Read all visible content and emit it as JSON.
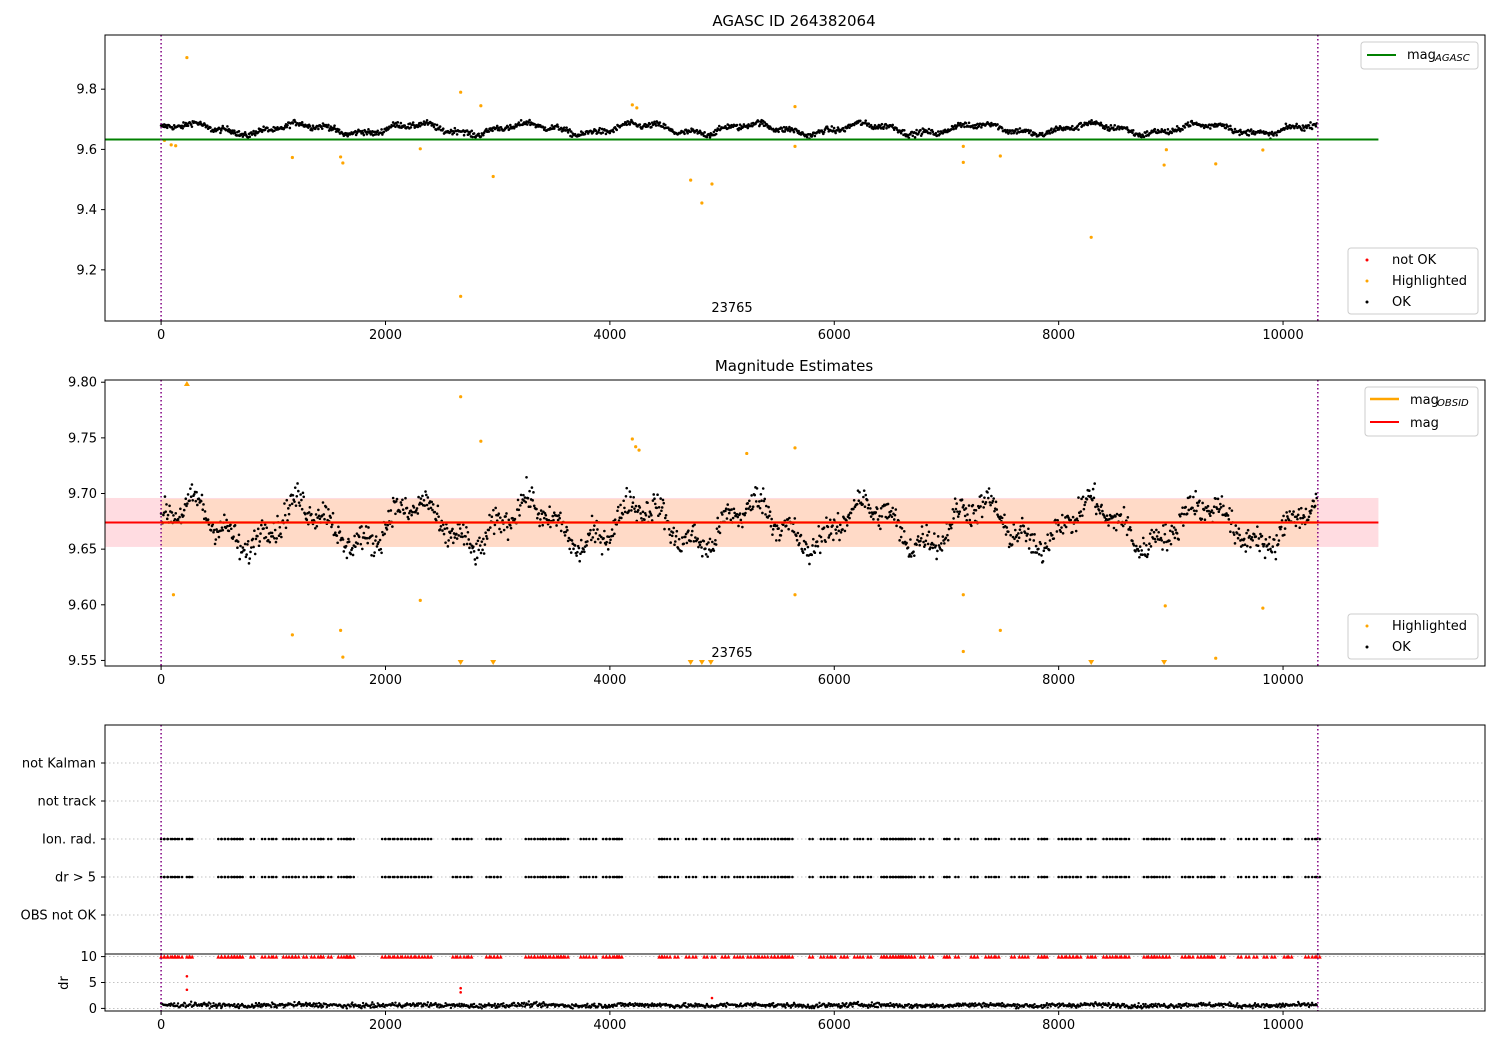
{
  "colors": {
    "ok": "#000000",
    "highlighted": "#ffa500",
    "not_ok": "#ff0000",
    "agasc_line": "#008000",
    "obsid_line": "#ffa500",
    "mag_line": "#ff0000",
    "obs_boundary": "#800080",
    "band_red": "#ffc0c8",
    "band_orange": "#ffd8bc"
  },
  "chart_data": [
    {
      "type": "scatter",
      "title": "AGASC ID 264382064",
      "xlim": [
        -500,
        11800
      ],
      "ylim": [
        9.03,
        9.98
      ],
      "x_ticks": [
        "0",
        "2000",
        "4000",
        "6000",
        "8000",
        "10000"
      ],
      "y_ticks": [
        "9.2",
        "9.4",
        "9.6",
        "9.8"
      ],
      "obsid_label": "23765",
      "obs_boundaries": [
        0,
        10310
      ],
      "reference_lines": [
        {
          "name": "mag",
          "subscript": "AGASC",
          "value": 9.633,
          "x_range": [
            -500,
            10850
          ]
        }
      ],
      "legend_lines": [
        {
          "name": "mag",
          "subscript": "AGASC",
          "color": "#008000"
        }
      ],
      "legend_points": [
        {
          "name": "not OK",
          "color": "#ff0000"
        },
        {
          "name": "Highlighted",
          "color": "#ffa500"
        },
        {
          "name": "OK",
          "color": "#000000"
        }
      ],
      "ok_series": {
        "x_range": [
          0,
          10300
        ],
        "center": 9.668,
        "amplitude": 0.022,
        "noise": 0.01
      },
      "highlighted_points": [
        [
          30,
          9.63
        ],
        [
          90,
          9.615
        ],
        [
          130,
          9.612
        ],
        [
          230,
          9.905
        ],
        [
          1170,
          9.573
        ],
        [
          1600,
          9.575
        ],
        [
          1620,
          9.555
        ],
        [
          2310,
          9.602
        ],
        [
          2670,
          9.79
        ],
        [
          2670,
          9.112
        ],
        [
          2850,
          9.745
        ],
        [
          2960,
          9.51
        ],
        [
          4200,
          9.748
        ],
        [
          4240,
          9.738
        ],
        [
          4720,
          9.498
        ],
        [
          4820,
          9.422
        ],
        [
          4910,
          9.485
        ],
        [
          5650,
          9.742
        ],
        [
          5650,
          9.61
        ],
        [
          7150,
          9.61
        ],
        [
          7150,
          9.557
        ],
        [
          7480,
          9.578
        ],
        [
          8290,
          9.308
        ],
        [
          8940,
          9.548
        ],
        [
          8960,
          9.599
        ],
        [
          9400,
          9.552
        ],
        [
          9820,
          9.598
        ]
      ]
    },
    {
      "type": "scatter",
      "title": "Magnitude Estimates",
      "xlim": [
        -500,
        11800
      ],
      "ylim": [
        9.545,
        9.802
      ],
      "x_ticks": [
        "0",
        "2000",
        "4000",
        "6000",
        "8000",
        "10000"
      ],
      "y_ticks": [
        "9.55",
        "9.60",
        "9.65",
        "9.70",
        "9.75",
        "9.80"
      ],
      "obsid_label": "23765",
      "obs_boundaries": [
        0,
        10310
      ],
      "mag_mean": 9.674,
      "mag_band": [
        9.652,
        9.696
      ],
      "obsid_band": [
        9.652,
        9.695
      ],
      "reference_lines": [
        {
          "name": "mag",
          "subscript": "OBSID",
          "value": 9.674,
          "x_range": [
            0,
            10310
          ]
        },
        {
          "name": "mag",
          "subscript": "",
          "value": 9.674,
          "x_range": [
            -500,
            10850
          ]
        }
      ],
      "legend_lines": [
        {
          "name": "mag",
          "subscript": "OBSID",
          "color": "#ffa500"
        },
        {
          "name": "mag",
          "subscript": "",
          "color": "#ff0000"
        }
      ],
      "legend_points": [
        {
          "name": "Highlighted",
          "color": "#ffa500"
        },
        {
          "name": "OK",
          "color": "#000000"
        }
      ],
      "ok_series": {
        "x_range": [
          0,
          10300
        ],
        "center": 9.672,
        "amplitude": 0.026,
        "noise": 0.012
      },
      "highlighted_points": [
        [
          110,
          9.609
        ],
        [
          1170,
          9.573
        ],
        [
          1600,
          9.577
        ],
        [
          1620,
          9.553
        ],
        [
          2310,
          9.604
        ],
        [
          2670,
          9.787
        ],
        [
          2850,
          9.747
        ],
        [
          4200,
          9.749
        ],
        [
          4230,
          9.742
        ],
        [
          4260,
          9.739
        ],
        [
          5220,
          9.736
        ],
        [
          5650,
          9.741
        ],
        [
          5650,
          9.609
        ],
        [
          7150,
          9.609
        ],
        [
          7150,
          9.558
        ],
        [
          7480,
          9.577
        ],
        [
          8950,
          9.599
        ],
        [
          9400,
          9.552
        ],
        [
          9820,
          9.597
        ]
      ],
      "clipped_high": [
        230
      ],
      "clipped_low": [
        2670,
        2960,
        4720,
        4820,
        4900,
        8290,
        8940
      ]
    },
    {
      "type": "scatter",
      "title": "",
      "xlim": [
        -500,
        11800
      ],
      "categories": [
        "not Kalman",
        "not track",
        "Ion. rad.",
        "dr > 5",
        "OBS not OK"
      ],
      "flag_times": [
        0,
        30,
        60,
        100,
        120,
        160,
        230,
        250,
        510,
        540,
        570,
        600,
        630,
        650,
        680,
        700,
        800,
        900,
        960,
        1000,
        1090,
        1140,
        1170,
        1200,
        1270,
        1340,
        1400,
        1420,
        1490,
        1580,
        1630,
        1650,
        1660,
        1690,
        1970,
        2000,
        2040,
        2080,
        2110,
        2150,
        2200,
        2230,
        2270,
        2300,
        2350,
        2380,
        2600,
        2640,
        2700,
        2740,
        2900,
        2940,
        2970,
        3000,
        3250,
        3300,
        3330,
        3380,
        3400,
        3430,
        3470,
        3500,
        3540,
        3560,
        3600,
        3740,
        3790,
        3850,
        3940,
        3970,
        4000,
        4040,
        4060,
        4080,
        4440,
        4460,
        4510,
        4580,
        4680,
        4740,
        4840,
        4910,
        5000,
        5030,
        5110,
        5160,
        5230,
        5290,
        5330,
        5380,
        5440,
        5470,
        5500,
        5540,
        5560,
        5600,
        5780,
        5880,
        5940,
        5980,
        6060,
        6090,
        6180,
        6230,
        6300,
        6420,
        6440,
        6470,
        6500,
        6520,
        6550,
        6570,
        6590,
        6610,
        6640,
        6660,
        6690,
        6770,
        6850,
        6980,
        7000,
        7080,
        7220,
        7250,
        7350,
        7400,
        7440,
        7580,
        7650,
        7700,
        7820,
        7850,
        7870,
        8000,
        8030,
        8070,
        8100,
        8130,
        8170,
        8260,
        8300,
        8400,
        8430,
        8480,
        8520,
        8560,
        8600,
        8760,
        8800,
        8830,
        8850,
        8900,
        8930,
        8960,
        9100,
        9130,
        9170,
        9240,
        9270,
        9300,
        9340,
        9360,
        9450,
        9600,
        9670,
        9740,
        9830,
        9900,
        10010,
        10050,
        10200,
        10260,
        10300
      ],
      "flag_rows": [
        "Ion. rad.",
        "dr > 5"
      ],
      "obs_boundaries": [
        0,
        10310
      ]
    },
    {
      "type": "scatter",
      "title": "",
      "ylabel": "dr",
      "xlim": [
        -500,
        11800
      ],
      "ylim": [
        -0.5,
        10.5
      ],
      "x_ticks": [
        "0",
        "2000",
        "4000",
        "6000",
        "8000",
        "10000"
      ],
      "y_ticks": [
        "0",
        "5",
        "10"
      ],
      "ok_series": {
        "x_range": [
          0,
          10300
        ],
        "center": 0.6,
        "amplitude": 0.15,
        "noise": 0.45
      },
      "capped_value": 10,
      "outliers": [
        [
          230,
          6.2
        ],
        [
          230,
          3.6
        ],
        [
          2670,
          3.9
        ],
        [
          2670,
          3.1
        ],
        [
          4910,
          2.0
        ]
      ],
      "obs_boundaries": [
        0,
        10310
      ]
    }
  ]
}
